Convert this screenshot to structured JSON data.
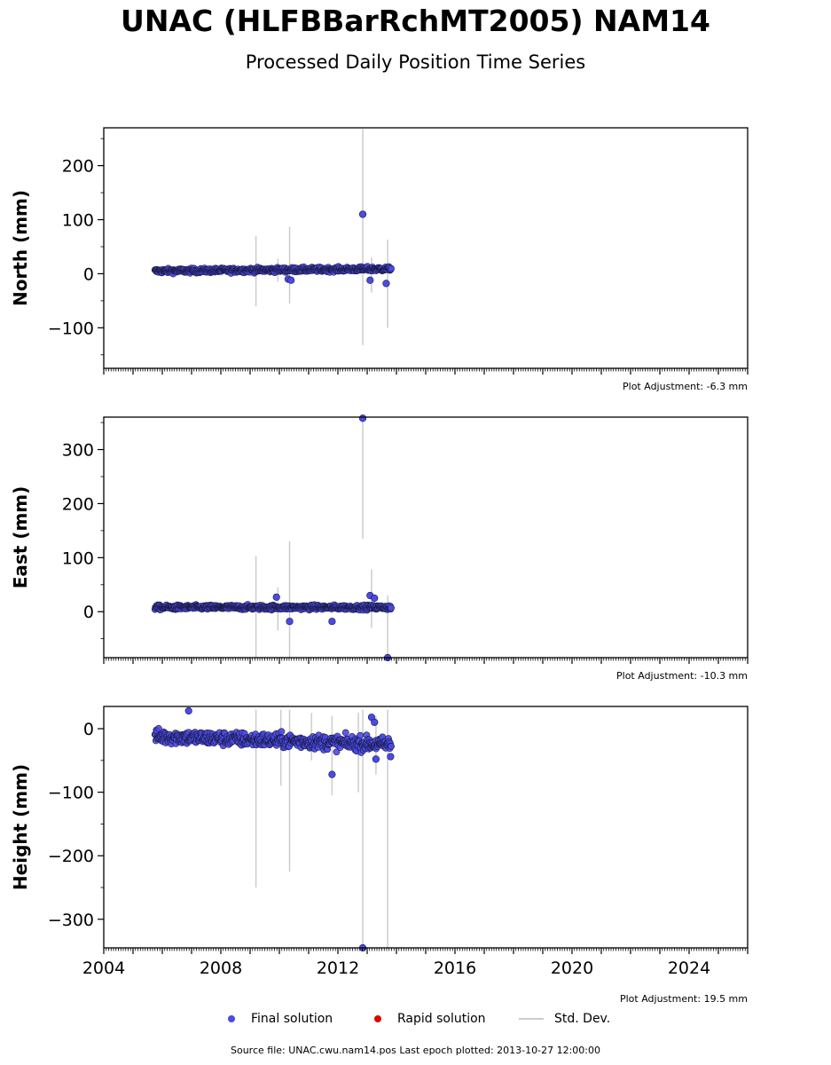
{
  "header": {
    "title": "UNAC (HLFBBarRchMT2005) NAM14",
    "subtitle": "Processed Daily Position Time Series"
  },
  "footer": {
    "source_label": "Source file: UNAC.cwu.nam14.pos  Last epoch plotted: 2013-10-27 12:00:00"
  },
  "legend": {
    "final": "Final solution",
    "rapid": "Rapid solution",
    "stddev": "Std. Dev."
  },
  "colors": {
    "final": "#4a4ae6",
    "rapid": "#e00000",
    "stddev": "#cccccc"
  },
  "chart_data": [
    {
      "type": "scatter",
      "ylabel": "North (mm)",
      "adjustment": "Plot Adjustment: -6.3 mm",
      "xlim": [
        2004,
        2026
      ],
      "ylim": [
        -175,
        270
      ],
      "yticks": [
        -100,
        0,
        100,
        200
      ],
      "xticks": [],
      "trend": {
        "start": 5,
        "end": 9,
        "noise": 3
      },
      "outliers": [
        [
          2012.85,
          110
        ],
        [
          2013.1,
          -12
        ],
        [
          2013.65,
          -18
        ],
        [
          2010.3,
          -10
        ],
        [
          2010.4,
          -12
        ]
      ],
      "errorbars": [
        [
          2009.2,
          -60,
          70
        ],
        [
          2010.35,
          -55,
          87
        ],
        [
          2012.85,
          -132,
          268
        ],
        [
          2013.15,
          -35,
          30
        ],
        [
          2013.7,
          -100,
          63
        ],
        [
          2009.95,
          -15,
          28
        ]
      ]
    },
    {
      "type": "scatter",
      "ylabel": "East (mm)",
      "adjustment": "Plot Adjustment: -10.3 mm",
      "xlim": [
        2004,
        2026
      ],
      "ylim": [
        -85,
        360
      ],
      "yticks": [
        0,
        100,
        200,
        300
      ],
      "xticks": [],
      "trend": {
        "start": 8,
        "end": 8,
        "noise": 3
      },
      "outliers": [
        [
          2009.9,
          27
        ],
        [
          2010.35,
          -18
        ],
        [
          2011.8,
          -18
        ],
        [
          2012.85,
          358
        ],
        [
          2013.1,
          30
        ],
        [
          2013.25,
          25
        ],
        [
          2013.7,
          -85
        ]
      ],
      "errorbars": [
        [
          2009.2,
          -85,
          103
        ],
        [
          2010.35,
          -85,
          130
        ],
        [
          2012.85,
          135,
          360
        ],
        [
          2013.15,
          -30,
          78
        ],
        [
          2013.7,
          -85,
          30
        ],
        [
          2009.95,
          -35,
          45
        ]
      ]
    },
    {
      "type": "scatter",
      "ylabel": "Height (mm)",
      "adjustment": "Plot Adjustment: 19.5 mm",
      "xlim": [
        2004,
        2026
      ],
      "ylim": [
        -345,
        35
      ],
      "yticks": [
        -300,
        -200,
        -100,
        0
      ],
      "xticks": [
        2004,
        2008,
        2012,
        2016,
        2020,
        2024
      ],
      "trend": {
        "start": -12,
        "end": -25,
        "noise": 8
      },
      "outliers": [
        [
          2006.9,
          28
        ],
        [
          2011.8,
          -72
        ],
        [
          2012.85,
          -345
        ],
        [
          2013.15,
          18
        ],
        [
          2013.25,
          10
        ],
        [
          2013.8,
          -44
        ],
        [
          2013.3,
          -48
        ]
      ],
      "errorbars": [
        [
          2009.2,
          -250,
          30
        ],
        [
          2010.35,
          -225,
          30
        ],
        [
          2012.85,
          -345,
          30
        ],
        [
          2013.7,
          -345,
          30
        ],
        [
          2010.05,
          -90,
          30
        ],
        [
          2011.8,
          -105,
          20
        ],
        [
          2013.3,
          -72,
          20
        ],
        [
          2012.7,
          -100,
          25
        ],
        [
          2011.1,
          -50,
          25
        ]
      ]
    }
  ]
}
